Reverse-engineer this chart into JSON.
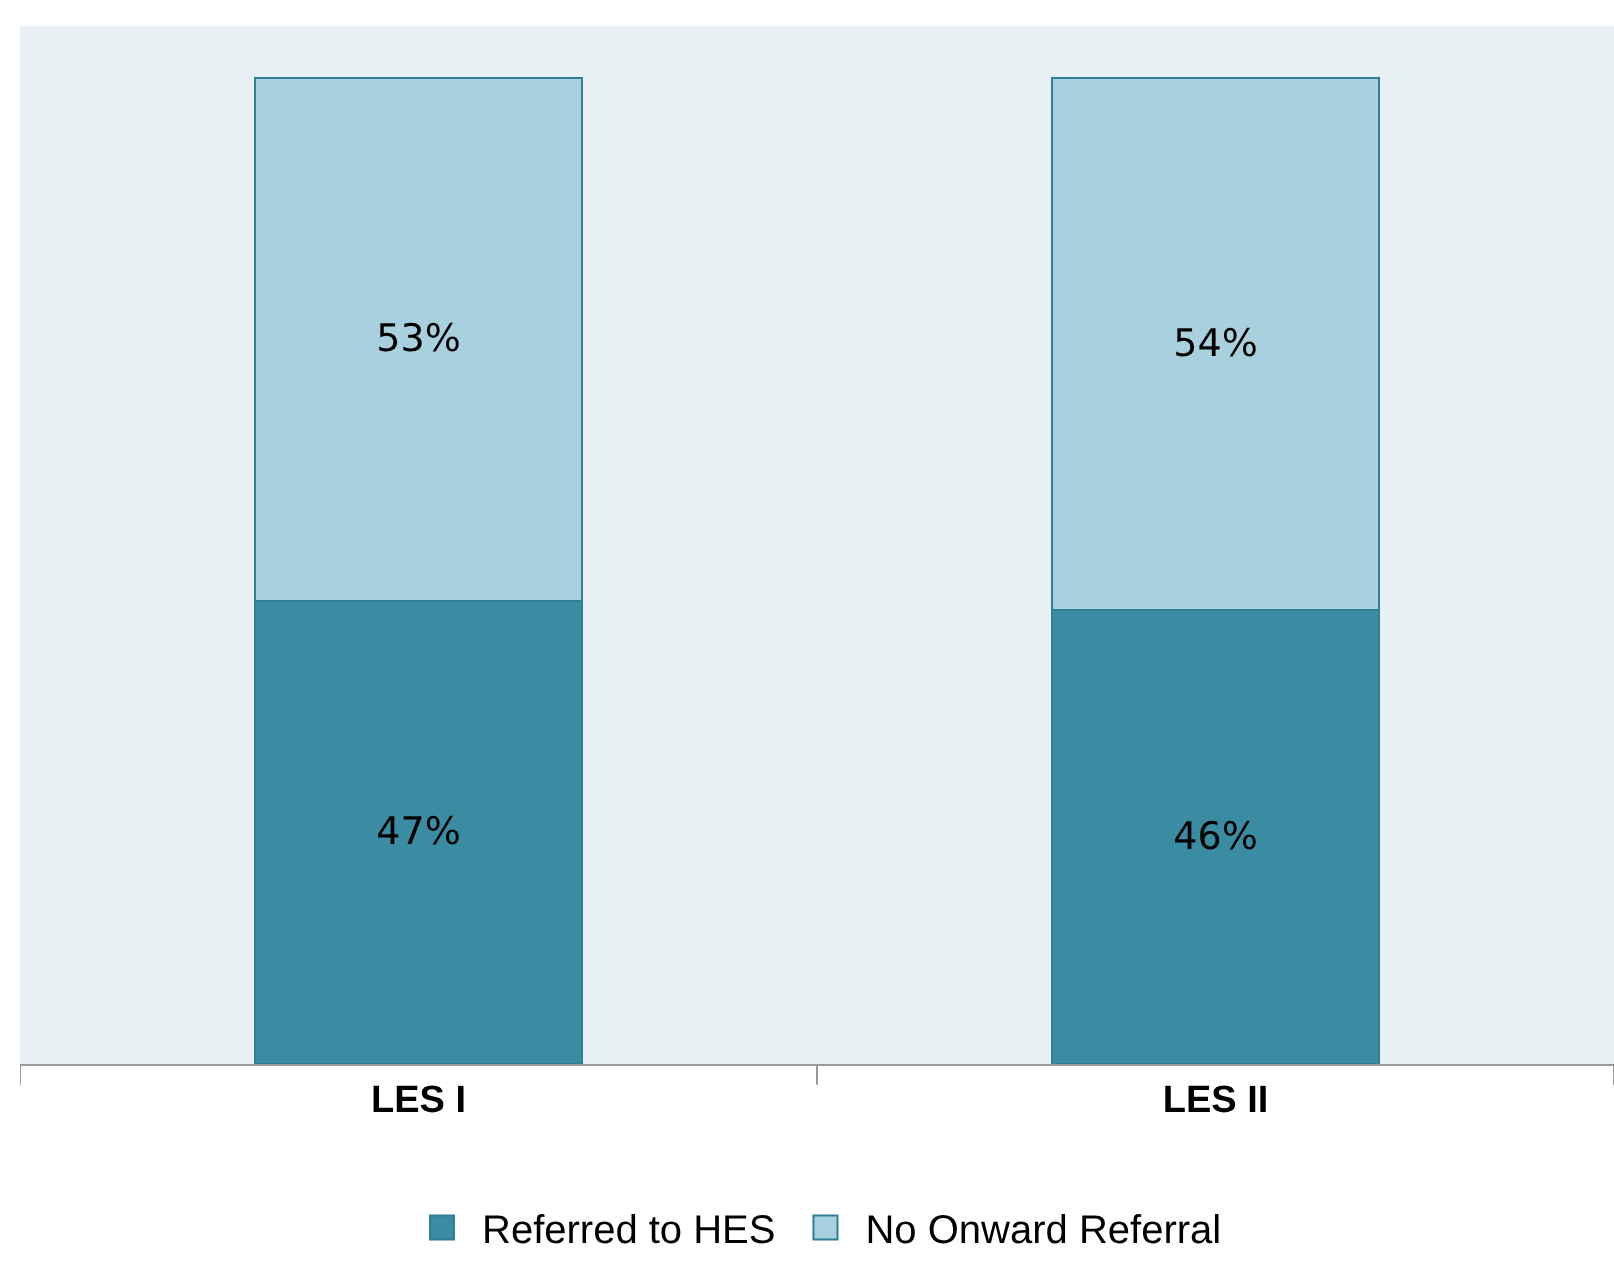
{
  "chart_data": {
    "type": "bar",
    "stacked": true,
    "categories": [
      "LES I",
      "LES II"
    ],
    "series": [
      {
        "name": "Referred to HES",
        "color": "#3a8ca3",
        "values": [
          47,
          46
        ],
        "value_labels": [
          "47%",
          "46%"
        ]
      },
      {
        "name": "No Onward Referral",
        "color": "#a9d0de",
        "values": [
          53,
          54
        ],
        "value_labels": [
          "53%",
          "54%"
        ]
      }
    ],
    "legend": "bottom"
  }
}
